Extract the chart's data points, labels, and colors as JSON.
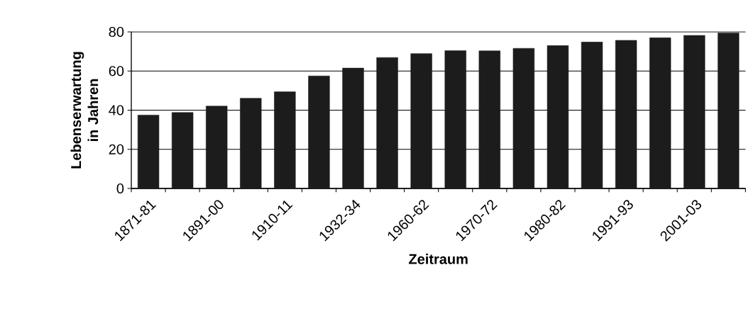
{
  "chart_data": {
    "type": "bar",
    "xlabel": "Zeitraum",
    "ylabel": "Lebenserwartung in Jahren",
    "categories": [
      "1871-81",
      null,
      "1891-00",
      null,
      "1910-11",
      null,
      "1932-34",
      null,
      "1960-62",
      null,
      "1970-72",
      null,
      "1980-82",
      null,
      "1991-93",
      null,
      "2001-03",
      null
    ],
    "values": [
      37.5,
      38.8,
      42.1,
      46.1,
      49.4,
      57.5,
      61.5,
      66.9,
      68.9,
      70.4,
      70.3,
      71.6,
      73.0,
      74.8,
      75.7,
      77.0,
      78.2,
      79.5
    ],
    "color": "#1c1c1c",
    "ylim": [
      0,
      80
    ],
    "yticks": [
      0,
      20,
      40,
      60,
      80
    ],
    "grid": "y"
  }
}
